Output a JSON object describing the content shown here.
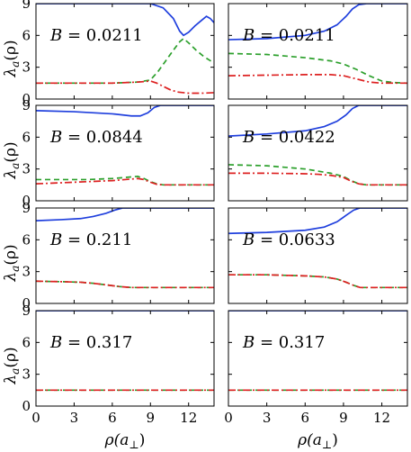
{
  "colors": {
    "blue": "#1f3fdd",
    "green": "#2ca02c",
    "red": "#dd2222"
  },
  "axis_labels": {
    "y": "λ",
    "y_sub": "a",
    "y_arg": "(ρ)",
    "x": "ρ(a",
    "x_sub": "⊥",
    "x_close": ")"
  },
  "chart_data": [
    {
      "type": "line",
      "panel": "row1-left",
      "annotation": "B = 0.0211",
      "xlim": [
        0,
        14
      ],
      "ylim": [
        0,
        9
      ],
      "xticks": [
        0,
        3,
        6,
        9,
        12
      ],
      "yticks": [
        0,
        3,
        6,
        9
      ],
      "series": [
        {
          "color": "blue",
          "style": "solid",
          "x": [
            0,
            3,
            6,
            8,
            9,
            10,
            10.8,
            11.3,
            11.6,
            12,
            12.5,
            13,
            13.4,
            13.7,
            14
          ],
          "y": [
            9,
            9,
            9,
            9,
            9,
            8.6,
            7.6,
            6.4,
            6.0,
            6.3,
            6.9,
            7.4,
            7.8,
            7.6,
            7.2
          ]
        },
        {
          "color": "green",
          "style": "dashed",
          "x": [
            0,
            3,
            6,
            8,
            9,
            9.6,
            10.2,
            10.8,
            11.3,
            11.6,
            12,
            12.6,
            13.2,
            14
          ],
          "y": [
            1.5,
            1.5,
            1.5,
            1.6,
            1.8,
            2.6,
            3.6,
            4.6,
            5.4,
            5.7,
            5.3,
            4.6,
            4.0,
            3.4
          ]
        },
        {
          "color": "red",
          "style": "dashdot",
          "x": [
            0,
            3,
            6,
            8,
            9,
            9.5,
            10,
            10.6,
            11.2,
            12,
            13,
            14
          ],
          "y": [
            1.5,
            1.5,
            1.5,
            1.6,
            1.7,
            1.5,
            1.2,
            0.85,
            0.65,
            0.55,
            0.55,
            0.6
          ]
        }
      ]
    },
    {
      "type": "line",
      "panel": "row1-right",
      "annotation": "B = 0.0211",
      "xlim": [
        0,
        14
      ],
      "ylim": [
        0,
        9
      ],
      "xticks": [
        0,
        3,
        6,
        9,
        12
      ],
      "yticks": [
        0,
        3,
        6,
        9
      ],
      "series": [
        {
          "color": "blue",
          "style": "solid",
          "x": [
            0,
            3,
            6,
            7.5,
            8.5,
            9.2,
            9.7,
            10.2,
            10.8,
            11.5,
            12.5,
            14
          ],
          "y": [
            5.6,
            5.7,
            6.0,
            6.4,
            7.0,
            7.8,
            8.5,
            8.9,
            9.0,
            9.0,
            9.0,
            9.0
          ]
        },
        {
          "color": "green",
          "style": "dashed",
          "x": [
            0,
            3,
            6,
            8,
            9,
            10,
            11,
            12,
            13,
            14
          ],
          "y": [
            4.3,
            4.2,
            3.9,
            3.6,
            3.3,
            2.8,
            2.2,
            1.7,
            1.55,
            1.5
          ]
        },
        {
          "color": "red",
          "style": "dashdot",
          "x": [
            0,
            3,
            6,
            8,
            9,
            10,
            11,
            12,
            13,
            14
          ],
          "y": [
            2.2,
            2.25,
            2.3,
            2.3,
            2.2,
            1.9,
            1.6,
            1.5,
            1.5,
            1.5
          ]
        }
      ]
    },
    {
      "type": "line",
      "panel": "row2-left",
      "annotation": "B = 0.0844",
      "xlim": [
        0,
        14
      ],
      "ylim": [
        0,
        9
      ],
      "xticks": [
        0,
        3,
        6,
        9,
        12
      ],
      "yticks": [
        0,
        3,
        6,
        9
      ],
      "series": [
        {
          "color": "blue",
          "style": "solid",
          "x": [
            0,
            3,
            6,
            7.5,
            8.2,
            8.8,
            9.3,
            9.8,
            10.3,
            11,
            12,
            14
          ],
          "y": [
            8.5,
            8.4,
            8.2,
            8.0,
            8.0,
            8.3,
            8.8,
            9.0,
            9.0,
            9.0,
            9.0,
            9.0
          ]
        },
        {
          "color": "green",
          "style": "dashed",
          "x": [
            0,
            2,
            4,
            6,
            7,
            8,
            8.5,
            9,
            9.5,
            10,
            11,
            14
          ],
          "y": [
            2.0,
            2.0,
            2.0,
            2.1,
            2.2,
            2.3,
            2.1,
            1.8,
            1.6,
            1.5,
            1.5,
            1.5
          ]
        },
        {
          "color": "red",
          "style": "dashdot",
          "x": [
            0,
            2,
            4,
            6,
            7,
            8,
            8.5,
            9,
            9.5,
            10,
            11,
            14
          ],
          "y": [
            1.6,
            1.7,
            1.8,
            1.9,
            2.0,
            2.1,
            2.0,
            1.75,
            1.55,
            1.5,
            1.5,
            1.5
          ]
        }
      ]
    },
    {
      "type": "line",
      "panel": "row2-right",
      "annotation": "B = 0.0422",
      "xlim": [
        0,
        14
      ],
      "ylim": [
        0,
        9
      ],
      "xticks": [
        0,
        3,
        6,
        9,
        12
      ],
      "yticks": [
        0,
        3,
        6,
        9
      ],
      "series": [
        {
          "color": "blue",
          "style": "solid",
          "x": [
            0,
            3,
            6,
            7.5,
            8.5,
            9.2,
            9.7,
            10.2,
            10.7,
            11.3,
            12,
            14
          ],
          "y": [
            6.1,
            6.3,
            6.6,
            7.0,
            7.5,
            8.1,
            8.7,
            9.0,
            9.0,
            9.0,
            9.0,
            9.0
          ]
        },
        {
          "color": "green",
          "style": "dashed",
          "x": [
            0,
            3,
            6,
            7,
            8,
            9,
            9.6,
            10.2,
            10.8,
            12,
            14
          ],
          "y": [
            3.4,
            3.3,
            3.0,
            2.8,
            2.6,
            2.3,
            1.9,
            1.6,
            1.5,
            1.5,
            1.5
          ]
        },
        {
          "color": "red",
          "style": "dashdot",
          "x": [
            0,
            3,
            6,
            7,
            8,
            9,
            9.6,
            10.2,
            10.8,
            12,
            14
          ],
          "y": [
            2.6,
            2.6,
            2.55,
            2.5,
            2.4,
            2.2,
            1.85,
            1.6,
            1.5,
            1.5,
            1.5
          ]
        }
      ]
    },
    {
      "type": "line",
      "panel": "row3-left",
      "annotation": "B = 0.211",
      "xlim": [
        0,
        14
      ],
      "ylim": [
        0,
        9
      ],
      "xticks": [
        0,
        3,
        6,
        9,
        12
      ],
      "yticks": [
        0,
        3,
        6,
        9
      ],
      "series": [
        {
          "color": "blue",
          "style": "solid",
          "x": [
            0,
            2,
            3.5,
            4.5,
            5.5,
            6.2,
            6.8,
            7.5,
            9,
            14
          ],
          "y": [
            7.8,
            7.9,
            8.0,
            8.2,
            8.5,
            8.8,
            9.0,
            9.0,
            9.0,
            9.0
          ]
        },
        {
          "color": "green",
          "style": "dashed",
          "x": [
            0,
            2,
            3.5,
            4.5,
            5.5,
            6.5,
            7.5,
            9,
            14
          ],
          "y": [
            2.1,
            2.05,
            2.0,
            1.9,
            1.75,
            1.6,
            1.5,
            1.5,
            1.5
          ]
        },
        {
          "color": "red",
          "style": "dashdot",
          "x": [
            0,
            2,
            3.5,
            4.5,
            5.5,
            6.5,
            7.5,
            9,
            14
          ],
          "y": [
            2.1,
            2.05,
            2.0,
            1.9,
            1.75,
            1.6,
            1.5,
            1.5,
            1.5
          ]
        }
      ]
    },
    {
      "type": "line",
      "panel": "row3-right",
      "annotation": "B = 0.0633",
      "xlim": [
        0,
        14
      ],
      "ylim": [
        0,
        9
      ],
      "xticks": [
        0,
        3,
        6,
        9,
        12
      ],
      "yticks": [
        0,
        3,
        6,
        9
      ],
      "series": [
        {
          "color": "blue",
          "style": "solid",
          "x": [
            0,
            3,
            6,
            7.5,
            8.5,
            9.2,
            9.8,
            10.3,
            10.8,
            12,
            14
          ],
          "y": [
            6.6,
            6.7,
            6.9,
            7.2,
            7.7,
            8.3,
            8.8,
            9.0,
            9.0,
            9.0,
            9.0
          ]
        },
        {
          "color": "green",
          "style": "dashed",
          "x": [
            0,
            3,
            6,
            7.5,
            8.5,
            9.2,
            9.8,
            10.3,
            11,
            14
          ],
          "y": [
            2.7,
            2.7,
            2.6,
            2.5,
            2.3,
            2.0,
            1.7,
            1.5,
            1.5,
            1.5
          ]
        },
        {
          "color": "red",
          "style": "dashdot",
          "x": [
            0,
            3,
            6,
            7.5,
            8.5,
            9.2,
            9.8,
            10.3,
            11,
            14
          ],
          "y": [
            2.7,
            2.7,
            2.6,
            2.5,
            2.3,
            2.0,
            1.7,
            1.5,
            1.5,
            1.5
          ]
        }
      ]
    },
    {
      "type": "line",
      "panel": "row4-left",
      "annotation": "B = 0.317",
      "xlim": [
        0,
        14
      ],
      "ylim": [
        0,
        9
      ],
      "xticks": [
        0,
        3,
        6,
        9,
        12
      ],
      "yticks": [
        0,
        3,
        6,
        9
      ],
      "series": [
        {
          "color": "blue",
          "style": "solid",
          "x": [
            0,
            14
          ],
          "y": [
            9,
            9
          ]
        },
        {
          "color": "green",
          "style": "dashed",
          "x": [
            0,
            14
          ],
          "y": [
            1.5,
            1.5
          ]
        },
        {
          "color": "red",
          "style": "dashdot",
          "x": [
            0,
            14
          ],
          "y": [
            1.5,
            1.5
          ]
        }
      ]
    },
    {
      "type": "line",
      "panel": "row4-right",
      "annotation": "B = 0.317",
      "xlim": [
        0,
        14
      ],
      "ylim": [
        0,
        9
      ],
      "xticks": [
        0,
        3,
        6,
        9,
        12
      ],
      "yticks": [
        0,
        3,
        6,
        9
      ],
      "series": [
        {
          "color": "blue",
          "style": "solid",
          "x": [
            0,
            14
          ],
          "y": [
            9,
            9
          ]
        },
        {
          "color": "green",
          "style": "dashed",
          "x": [
            0,
            14
          ],
          "y": [
            1.5,
            1.5
          ]
        },
        {
          "color": "red",
          "style": "dashdot",
          "x": [
            0,
            14
          ],
          "y": [
            1.5,
            1.5
          ]
        }
      ]
    }
  ]
}
